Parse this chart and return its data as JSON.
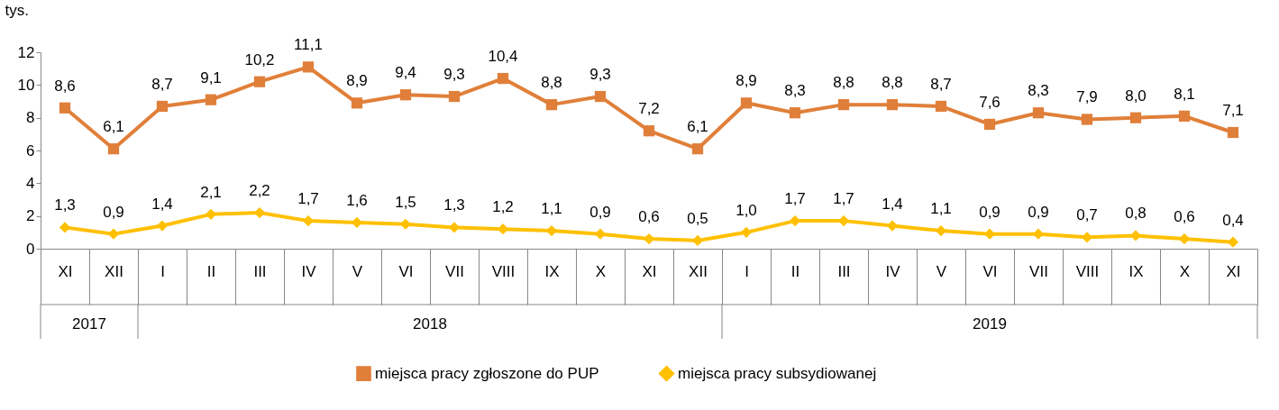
{
  "chart_data": {
    "type": "line",
    "ylabel": "tys.",
    "categories": [
      "XI",
      "XII",
      "I",
      "II",
      "III",
      "IV",
      "V",
      "VI",
      "VII",
      "VIII",
      "IX",
      "X",
      "XI",
      "XII",
      "I",
      "II",
      "III",
      "IV",
      "V",
      "VI",
      "VII",
      "VIII",
      "IX",
      "X",
      "XI"
    ],
    "annotations": [
      "2017",
      "2018",
      "2019"
    ],
    "ylim": [
      0,
      12
    ],
    "yticks": [
      0,
      2,
      4,
      6,
      8,
      10,
      12
    ],
    "grid": false,
    "legend": "bottom",
    "line_style": "solid",
    "series": [
      {
        "name": "miejsca pracy zgłoszone do PUP",
        "color": "#e07f39",
        "marker": "square",
        "values": [
          8.6,
          6.1,
          8.7,
          9.1,
          10.2,
          11.1,
          8.9,
          9.4,
          9.3,
          10.4,
          8.8,
          9.3,
          7.2,
          6.1,
          8.9,
          8.3,
          8.8,
          8.8,
          8.7,
          7.6,
          8.3,
          7.9,
          8.0,
          8.1,
          7.1
        ],
        "value_labels": [
          "8,6",
          "6,1",
          "8,7",
          "9,1",
          "10,2",
          "11,1",
          "8,9",
          "9,4",
          "9,3",
          "10,4",
          "8,8",
          "9,3",
          "7,2",
          "6,1",
          "8,9",
          "8,3",
          "8,8",
          "8,8",
          "8,7",
          "7,6",
          "8,3",
          "7,9",
          "8,0",
          "8,1",
          "7,1"
        ]
      },
      {
        "name": "miejsca pracy subsydiowanej",
        "color": "#ffc000",
        "marker": "diamond",
        "values": [
          1.3,
          0.9,
          1.4,
          2.1,
          2.2,
          1.7,
          1.6,
          1.5,
          1.3,
          1.2,
          1.1,
          0.9,
          0.6,
          0.5,
          1.0,
          1.7,
          1.7,
          1.4,
          1.1,
          0.9,
          0.9,
          0.7,
          0.8,
          0.6,
          0.4
        ],
        "value_labels": [
          "1,3",
          "0,9",
          "1,4",
          "2,1",
          "2,2",
          "1,7",
          "1,6",
          "1,5",
          "1,3",
          "1,2",
          "1,1",
          "0,9",
          "0,6",
          "0,5",
          "1,0",
          "1,7",
          "1,7",
          "1,4",
          "1,1",
          "0,9",
          "0,9",
          "0,7",
          "0,8",
          "0,6",
          "0,4"
        ]
      }
    ]
  }
}
